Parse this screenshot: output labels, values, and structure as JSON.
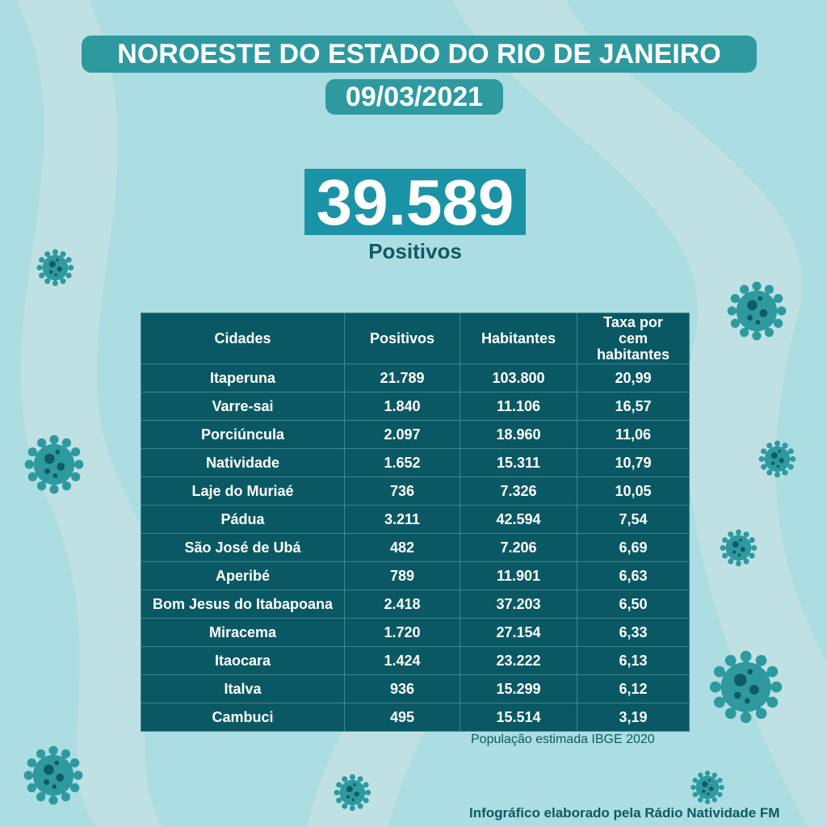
{
  "header": {
    "title": "NOROESTE DO ESTADO DO RIO DE JANEIRO",
    "date": "09/03/2021"
  },
  "summary": {
    "total": "39.589",
    "label": "Positivos"
  },
  "table": {
    "headers": [
      "Cidades",
      "Positivos",
      "Habitantes",
      "Taxa por cem habitantes"
    ],
    "rows": [
      [
        "Itaperuna",
        "21.789",
        "103.800",
        "20,99"
      ],
      [
        "Varre-sai",
        "1.840",
        "11.106",
        "16,57"
      ],
      [
        "Porciúncula",
        "2.097",
        "18.960",
        "11,06"
      ],
      [
        "Natividade",
        "1.652",
        "15.311",
        "10,79"
      ],
      [
        "Laje do Muriaé",
        "736",
        "7.326",
        "10,05"
      ],
      [
        "Pádua",
        "3.211",
        "42.594",
        "7,54"
      ],
      [
        "São José de Ubá",
        "482",
        "7.206",
        "6,69"
      ],
      [
        "Aperibé",
        "789",
        "11.901",
        "6,63"
      ],
      [
        "Bom Jesus do Itabapoana",
        "2.418",
        "37.203",
        "6,50"
      ],
      [
        "Miracema",
        "1.720",
        "27.154",
        "6,33"
      ],
      [
        "Itaocara",
        "1.424",
        "23.222",
        "6,13"
      ],
      [
        "Italva",
        "936",
        "15.299",
        "6,12"
      ],
      [
        "Cambuci",
        "495",
        "15.514",
        "3,19"
      ]
    ]
  },
  "footer": {
    "note": "População estimada IBGE 2020",
    "credit": "Infográfico elaborado pela Rádio Natividade FM"
  },
  "colors": {
    "background": "#abdde2",
    "table": "#0a5864",
    "badge": "#2e9aa0",
    "virus": "#2e9aa0"
  }
}
